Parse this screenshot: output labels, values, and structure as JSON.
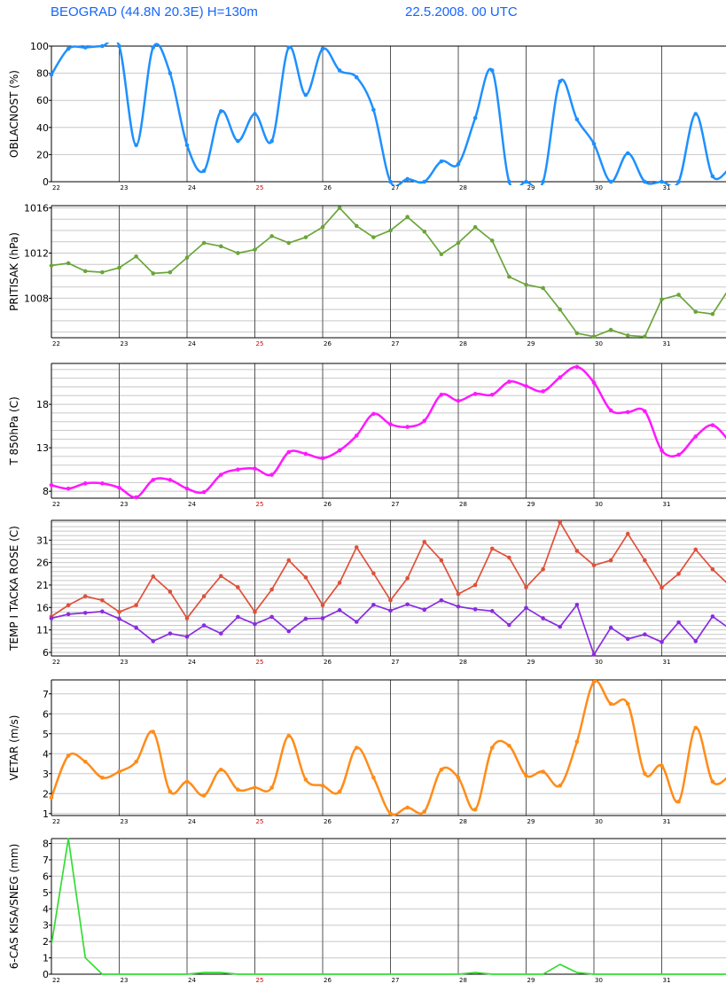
{
  "header": {
    "location": "BEOGRAD  (44.8N  20.3E)  H=130m",
    "run": "22.5.2008.  00 UTC"
  },
  "day_labels": [
    "22",
    "23",
    "24",
    "25",
    "26",
    "27",
    "28",
    "29",
    "30",
    "31"
  ],
  "highlight_day": "25",
  "colors": {
    "cloud": "#1e90ff",
    "pressure": "#6aa53a",
    "t850": "#ff19ff",
    "temp": "#e0503a",
    "dew": "#8a2be2",
    "wind": "#ff8c1a",
    "precip": "#33dd33",
    "highlight_day": "#dd0000",
    "grid": "#c8c8c8",
    "day_line": "#555555"
  },
  "chart_data": [
    {
      "type": "line",
      "id": "cloud",
      "ylabel": "OBLACNOST (%)",
      "ylim": [
        0,
        100
      ],
      "yticks": [
        0,
        20,
        40,
        60,
        80,
        100
      ],
      "grid_step": 20,
      "smooth": true,
      "series": [
        {
          "color_key": "cloud",
          "marker": "dot",
          "x": [
            0,
            0.25,
            0.5,
            0.75,
            1,
            1.25,
            1.5,
            1.75,
            2,
            2.25,
            2.5,
            2.75,
            3,
            3.25,
            3.5,
            3.75,
            4,
            4.25,
            4.5,
            4.75,
            5,
            5.25,
            5.5,
            5.75,
            6,
            6.25,
            6.5,
            6.75,
            7,
            7.25,
            7.5,
            7.75,
            8,
            8.25,
            8.5,
            8.75,
            9,
            9.25,
            9.5,
            9.75,
            10
          ],
          "values": [
            79,
            98,
            99,
            100,
            100,
            27,
            99,
            80,
            27,
            8,
            52,
            30,
            50,
            30,
            99,
            64,
            98,
            82,
            77,
            53,
            0,
            2,
            0,
            15,
            13,
            47,
            82,
            0,
            0,
            0,
            74,
            46,
            28,
            0,
            21,
            0,
            0,
            0,
            50,
            4,
            10
          ]
        }
      ]
    },
    {
      "type": "line",
      "id": "pressure",
      "ylabel": "PRITISAK (hPa)",
      "ylim": [
        1004.5,
        1016.2
      ],
      "yticks": [
        1008,
        1012,
        1016
      ],
      "grid_step": 1,
      "smooth": false,
      "series": [
        {
          "color_key": "pressure",
          "marker": "dot",
          "x": [
            0,
            0.25,
            0.5,
            0.75,
            1,
            1.25,
            1.5,
            1.75,
            2,
            2.25,
            2.5,
            2.75,
            3,
            3.25,
            3.5,
            3.75,
            4,
            4.25,
            4.5,
            4.75,
            5,
            5.25,
            5.5,
            5.75,
            6,
            6.25,
            6.5,
            6.75,
            7,
            7.25,
            7.5,
            7.75,
            8,
            8.25,
            8.5,
            8.75,
            9,
            9.25,
            9.5,
            9.75,
            10
          ],
          "values": [
            1010.9,
            1011.1,
            1010.4,
            1010.3,
            1010.7,
            1011.7,
            1010.2,
            1010.3,
            1011.6,
            1012.9,
            1012.6,
            1012.0,
            1012.3,
            1013.5,
            1012.9,
            1013.4,
            1014.3,
            1016.0,
            1014.4,
            1013.4,
            1014.0,
            1015.2,
            1013.9,
            1011.9,
            1012.9,
            1014.3,
            1013.1,
            1009.9,
            1009.2,
            1008.9,
            1007.0,
            1004.9,
            1004.6,
            1005.2,
            1004.7,
            1004.6,
            1007.9,
            1008.3,
            1006.8,
            1006.6,
            1008.9
          ]
        }
      ]
    },
    {
      "type": "line",
      "id": "t850",
      "ylabel": "T 850hPa (C)",
      "ylim": [
        7.2,
        22.7
      ],
      "yticks": [
        8,
        13,
        18
      ],
      "grid_step": 1,
      "smooth": true,
      "series": [
        {
          "color_key": "t850",
          "marker": "dot",
          "x": [
            0,
            0.25,
            0.5,
            0.75,
            1,
            1.25,
            1.5,
            1.75,
            2,
            2.25,
            2.5,
            2.75,
            3,
            3.25,
            3.5,
            3.75,
            4,
            4.25,
            4.5,
            4.75,
            5,
            5.25,
            5.5,
            5.75,
            6,
            6.25,
            6.5,
            6.75,
            7,
            7.25,
            7.5,
            7.75,
            8,
            8.25,
            8.5,
            8.75,
            9,
            9.25,
            9.5,
            9.75,
            10
          ],
          "values": [
            8.7,
            8.3,
            8.9,
            8.9,
            8.4,
            7.3,
            9.3,
            9.3,
            8.3,
            7.9,
            9.9,
            10.5,
            10.6,
            9.9,
            12.5,
            12.3,
            11.8,
            12.7,
            14.4,
            16.9,
            15.7,
            15.4,
            16.1,
            19.1,
            18.4,
            19.2,
            19.1,
            20.6,
            20.1,
            19.5,
            21.1,
            22.3,
            20.5,
            17.3,
            17.1,
            17.2,
            12.7,
            12.2,
            14.3,
            15.6,
            13.7
          ]
        }
      ]
    },
    {
      "type": "line",
      "id": "temp",
      "ylabel": "TEMP I TACKA ROSE (C)",
      "ylim": [
        5.2,
        35.4
      ],
      "yticks": [
        6,
        11,
        16,
        21,
        26,
        31
      ],
      "grid_step": 1,
      "smooth": false,
      "series": [
        {
          "color_key": "temp",
          "marker": "dot",
          "x": [
            0,
            0.25,
            0.5,
            0.75,
            1,
            1.25,
            1.5,
            1.75,
            2,
            2.25,
            2.5,
            2.75,
            3,
            3.25,
            3.5,
            3.75,
            4,
            4.25,
            4.5,
            4.75,
            5,
            5.25,
            5.5,
            5.75,
            6,
            6.25,
            6.5,
            6.75,
            7,
            7.25,
            7.5,
            7.75,
            8,
            8.25,
            8.5,
            8.75,
            9,
            9.25,
            9.5,
            9.75,
            10
          ],
          "values": [
            14.0,
            16.5,
            18.5,
            17.6,
            15.0,
            16.5,
            22.9,
            19.5,
            13.6,
            18.5,
            23.0,
            20.5,
            15.0,
            20.0,
            26.5,
            22.7,
            16.5,
            21.5,
            29.4,
            23.6,
            17.6,
            22.5,
            30.6,
            26.5,
            19.0,
            21.0,
            29.1,
            27.1,
            20.5,
            24.5,
            35.0,
            28.6,
            25.4,
            26.5,
            32.4,
            26.5,
            20.4,
            23.5,
            28.9,
            24.5,
            20.9
          ]
        },
        {
          "color_key": "dew",
          "marker": "dot",
          "x": [
            0,
            0.25,
            0.5,
            0.75,
            1,
            1.25,
            1.5,
            1.75,
            2,
            2.25,
            2.5,
            2.75,
            3,
            3.25,
            3.5,
            3.75,
            4,
            4.25,
            4.5,
            4.75,
            5,
            5.25,
            5.5,
            5.75,
            6,
            6.25,
            6.5,
            6.75,
            7,
            7.25,
            7.5,
            7.75,
            8,
            8.25,
            8.5,
            8.75,
            9,
            9.25,
            9.5,
            9.75,
            10
          ],
          "values": [
            13.6,
            14.5,
            14.8,
            15.1,
            13.5,
            11.5,
            8.5,
            10.2,
            9.5,
            12.0,
            10.2,
            13.9,
            12.3,
            13.9,
            10.7,
            13.5,
            13.6,
            15.4,
            12.8,
            16.6,
            15.3,
            16.7,
            15.5,
            17.6,
            16.2,
            15.6,
            15.2,
            12.1,
            15.9,
            13.6,
            11.7,
            16.6,
            5.5,
            11.5,
            9.0,
            10.0,
            8.3,
            12.7,
            8.5,
            14.0,
            11.3
          ]
        }
      ]
    },
    {
      "type": "line",
      "id": "wind",
      "ylabel": "VETAR (m/s)",
      "ylim": [
        0.9,
        7.7
      ],
      "yticks": [
        1,
        2,
        3,
        4,
        5,
        6,
        7
      ],
      "grid_step": 1,
      "smooth": true,
      "series": [
        {
          "color_key": "wind",
          "marker": "dot",
          "x": [
            0,
            0.25,
            0.5,
            0.75,
            1,
            1.25,
            1.5,
            1.75,
            2,
            2.25,
            2.5,
            2.75,
            3,
            3.25,
            3.5,
            3.75,
            4,
            4.25,
            4.5,
            4.75,
            5,
            5.25,
            5.5,
            5.75,
            6,
            6.25,
            6.5,
            6.75,
            7,
            7.25,
            7.5,
            7.75,
            8,
            8.25,
            8.5,
            8.75,
            9,
            9.25,
            9.5,
            9.75,
            10
          ],
          "values": [
            1.8,
            3.9,
            3.6,
            2.8,
            3.1,
            3.6,
            5.1,
            2.1,
            2.6,
            1.9,
            3.2,
            2.2,
            2.3,
            2.3,
            4.9,
            2.7,
            2.4,
            2.1,
            4.3,
            2.8,
            1.0,
            1.3,
            1.1,
            3.2,
            2.8,
            1.2,
            4.3,
            4.4,
            2.9,
            3.1,
            2.4,
            4.6,
            7.6,
            6.5,
            6.5,
            3.0,
            3.4,
            1.6,
            5.3,
            2.6,
            2.9
          ]
        }
      ]
    },
    {
      "type": "line",
      "id": "precip",
      "ylabel": "6-CAS KISA/SNEG (mm)",
      "ylim": [
        0,
        8.3
      ],
      "yticks": [
        0,
        1,
        2,
        3,
        4,
        5,
        6,
        7,
        8
      ],
      "grid_step": 1,
      "smooth": false,
      "series": [
        {
          "color_key": "precip",
          "marker": "none",
          "x": [
            0,
            0.25,
            0.5,
            0.75,
            1,
            1.25,
            1.5,
            1.75,
            2,
            2.25,
            2.5,
            2.75,
            3,
            3.25,
            3.5,
            3.75,
            4,
            4.25,
            4.5,
            4.75,
            5,
            5.25,
            5.5,
            5.75,
            6,
            6.25,
            6.5,
            6.75,
            7,
            7.25,
            7.5,
            7.75,
            8,
            8.25,
            8.5,
            8.75,
            9,
            9.25,
            9.5,
            9.75,
            10
          ],
          "values": [
            1.8,
            8.3,
            1.0,
            0,
            0,
            0,
            0,
            0,
            0,
            0.1,
            0.1,
            0,
            0,
            0,
            0,
            0,
            0,
            0,
            0,
            0,
            0,
            0,
            0,
            0,
            0,
            0.1,
            0,
            0,
            0,
            0,
            0.6,
            0.1,
            0,
            0,
            0,
            0,
            0,
            0,
            0,
            0,
            0
          ]
        }
      ]
    }
  ]
}
